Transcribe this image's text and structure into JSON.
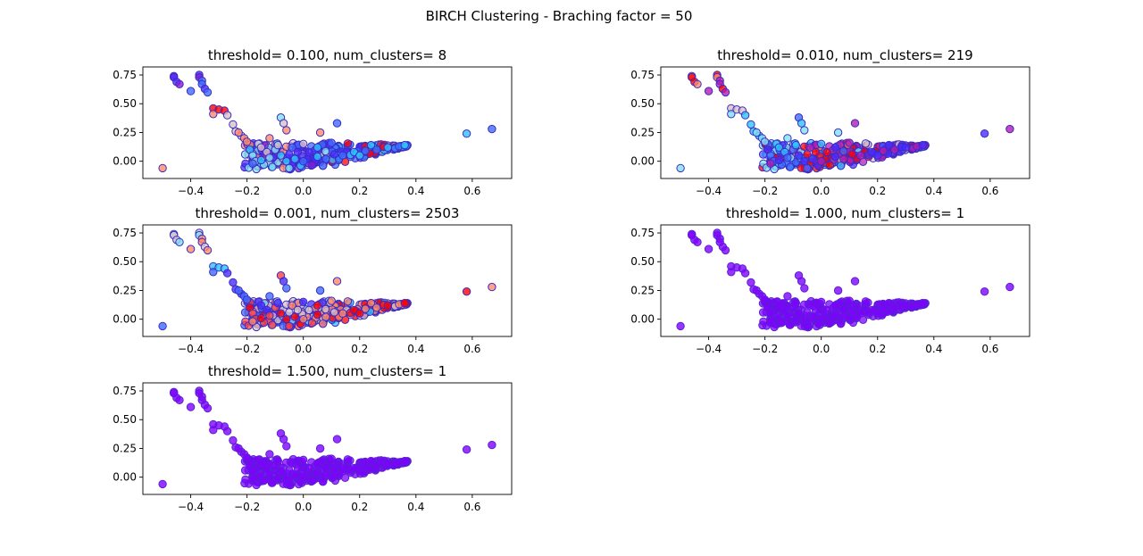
{
  "figure": {
    "suptitle": "BIRCH Clustering - Braching factor = 50"
  },
  "chart_data": [
    {
      "type": "scatter",
      "title": "threshold= 0.100, num_clusters= 8",
      "threshold": 0.1,
      "num_clusters": 8,
      "xlim": [
        -0.57,
        0.74
      ],
      "ylim": [
        -0.15,
        0.82
      ],
      "xticks": [
        -0.4,
        -0.2,
        0.0,
        0.2,
        0.4,
        0.6
      ],
      "xtick_labels": [
        "−0.4",
        "−0.2",
        "0.0",
        "0.2",
        "0.4",
        "0.6"
      ],
      "yticks": [
        0.0,
        0.25,
        0.5,
        0.75
      ],
      "ytick_labels": [
        "0.00",
        "0.25",
        "0.50",
        "0.75"
      ],
      "palette": [
        "#ff0000",
        "#ff8a6b",
        "#d8c2c8",
        "#7fe0f5",
        "#2fc3ff",
        "#3f6cff",
        "#4a2cff",
        "#8a1bd2"
      ],
      "color_scheme": "cluster-mixed"
    },
    {
      "type": "scatter",
      "title": "threshold= 0.010, num_clusters= 219",
      "threshold": 0.01,
      "num_clusters": 219,
      "xlim": [
        -0.57,
        0.74
      ],
      "ylim": [
        -0.15,
        0.82
      ],
      "xticks": [
        -0.4,
        -0.2,
        0.0,
        0.2,
        0.4,
        0.6
      ],
      "xtick_labels": [
        "−0.4",
        "−0.2",
        "0.0",
        "0.2",
        "0.4",
        "0.6"
      ],
      "yticks": [
        0.0,
        0.25,
        0.5,
        0.75
      ],
      "ytick_labels": [
        "0.00",
        "0.25",
        "0.50",
        "0.75"
      ],
      "palette": [
        "#ff0000",
        "#ff8a6b",
        "#d8c2c8",
        "#7fe0f5",
        "#2fc3ff",
        "#3f6cff",
        "#4a2cff",
        "#b51cb0"
      ],
      "color_scheme": "cluster-mixed"
    },
    {
      "type": "scatter",
      "title": "threshold= 0.001, num_clusters= 2503",
      "threshold": 0.001,
      "num_clusters": 2503,
      "xlim": [
        -0.57,
        0.74
      ],
      "ylim": [
        -0.15,
        0.82
      ],
      "xticks": [
        -0.4,
        -0.2,
        0.0,
        0.2,
        0.4,
        0.6
      ],
      "xtick_labels": [
        "−0.4",
        "−0.2",
        "0.0",
        "0.2",
        "0.4",
        "0.6"
      ],
      "yticks": [
        0.0,
        0.25,
        0.5,
        0.75
      ],
      "ytick_labels": [
        "0.00",
        "0.25",
        "0.50",
        "0.75"
      ],
      "palette": [
        "#ff0000",
        "#ff8a6b",
        "#d8c2c8",
        "#7fe0f5",
        "#2fc3ff",
        "#3f6cff",
        "#4a2cff",
        "#ff4040"
      ],
      "color_scheme": "cluster-mixed"
    },
    {
      "type": "scatter",
      "title": "threshold= 1.000, num_clusters= 1",
      "threshold": 1.0,
      "num_clusters": 1,
      "xlim": [
        -0.57,
        0.74
      ],
      "ylim": [
        -0.15,
        0.82
      ],
      "xticks": [
        -0.4,
        -0.2,
        0.0,
        0.2,
        0.4,
        0.6
      ],
      "xtick_labels": [
        "−0.4",
        "−0.2",
        "0.0",
        "0.2",
        "0.4",
        "0.6"
      ],
      "yticks": [
        0.0,
        0.25,
        0.5,
        0.75
      ],
      "ytick_labels": [
        "0.00",
        "0.25",
        "0.50",
        "0.75"
      ],
      "palette": [
        "#7f00ff"
      ],
      "color_scheme": "single"
    },
    {
      "type": "scatter",
      "title": "threshold= 1.500, num_clusters= 1",
      "threshold": 1.5,
      "num_clusters": 1,
      "xlim": [
        -0.57,
        0.74
      ],
      "ylim": [
        -0.15,
        0.82
      ],
      "xticks": [
        -0.4,
        -0.2,
        0.0,
        0.2,
        0.4,
        0.6
      ],
      "xtick_labels": [
        "−0.4",
        "−0.2",
        "0.0",
        "0.2",
        "0.4",
        "0.6"
      ],
      "yticks": [
        0.0,
        0.25,
        0.5,
        0.75
      ],
      "ytick_labels": [
        "0.00",
        "0.25",
        "0.50",
        "0.75"
      ],
      "palette": [
        "#7f00ff"
      ],
      "color_scheme": "single"
    }
  ],
  "points": {
    "x": [
      -0.46,
      -0.46,
      -0.45,
      -0.44,
      -0.4,
      -0.37,
      -0.37,
      -0.36,
      -0.36,
      -0.35,
      -0.34,
      -0.32,
      -0.32,
      -0.3,
      -0.28,
      -0.27,
      -0.25,
      -0.24,
      -0.22,
      -0.21,
      -0.2,
      -0.19,
      -0.18,
      -0.17,
      -0.16,
      -0.15,
      -0.14,
      -0.13,
      -0.12,
      -0.11,
      -0.1,
      -0.09,
      -0.08,
      -0.08,
      -0.07,
      -0.06,
      -0.05,
      -0.04,
      -0.03,
      -0.02,
      -0.01,
      0.0,
      0.02,
      0.05,
      0.08,
      0.11,
      0.14,
      0.18,
      0.22,
      0.26,
      0.3,
      0.34,
      0.36,
      0.58,
      0.67,
      -0.5,
      -0.23,
      -0.18,
      -0.12,
      -0.06,
      0.0,
      0.06,
      0.12,
      -0.15,
      -0.05,
      0.05,
      0.1,
      0.2
    ],
    "y": [
      0.74,
      0.73,
      0.69,
      0.67,
      0.61,
      0.75,
      0.73,
      0.7,
      0.67,
      0.63,
      0.6,
      0.46,
      0.41,
      0.45,
      0.44,
      0.4,
      0.32,
      0.26,
      0.22,
      0.2,
      0.17,
      0.1,
      0.05,
      0.0,
      0.15,
      0.12,
      -0.03,
      0.08,
      0.03,
      -0.05,
      0.1,
      0.14,
      0.05,
      0.38,
      0.33,
      0.0,
      0.06,
      0.12,
      0.02,
      0.08,
      -0.04,
      0.0,
      0.08,
      0.04,
      0.02,
      0.06,
      0.05,
      0.08,
      0.09,
      0.1,
      0.12,
      0.13,
      0.14,
      0.24,
      0.28,
      -0.06,
      0.25,
      -0.02,
      0.2,
      0.27,
      0.15,
      0.25,
      0.33,
      0.01,
      -0.06,
      0.12,
      0.16,
      0.05
    ],
    "cluster_band": [
      6,
      6,
      6,
      6,
      5,
      6,
      6,
      5,
      5,
      5,
      5,
      0,
      0,
      0,
      0,
      1,
      2,
      2,
      1,
      1,
      1,
      3,
      3,
      3,
      1,
      2,
      3,
      1,
      3,
      3,
      2,
      2,
      4,
      2,
      2,
      4,
      5,
      5,
      4,
      5,
      4,
      5,
      5,
      4,
      5,
      5,
      5,
      4,
      4,
      5,
      4,
      4,
      4,
      4,
      4,
      1,
      1,
      4,
      1,
      1,
      1,
      1,
      5,
      3,
      3,
      4,
      4,
      4
    ],
    "dense_cloud": {
      "x_range": [
        -0.22,
        0.37
      ],
      "y_range": [
        -0.07,
        0.16
      ]
    }
  }
}
